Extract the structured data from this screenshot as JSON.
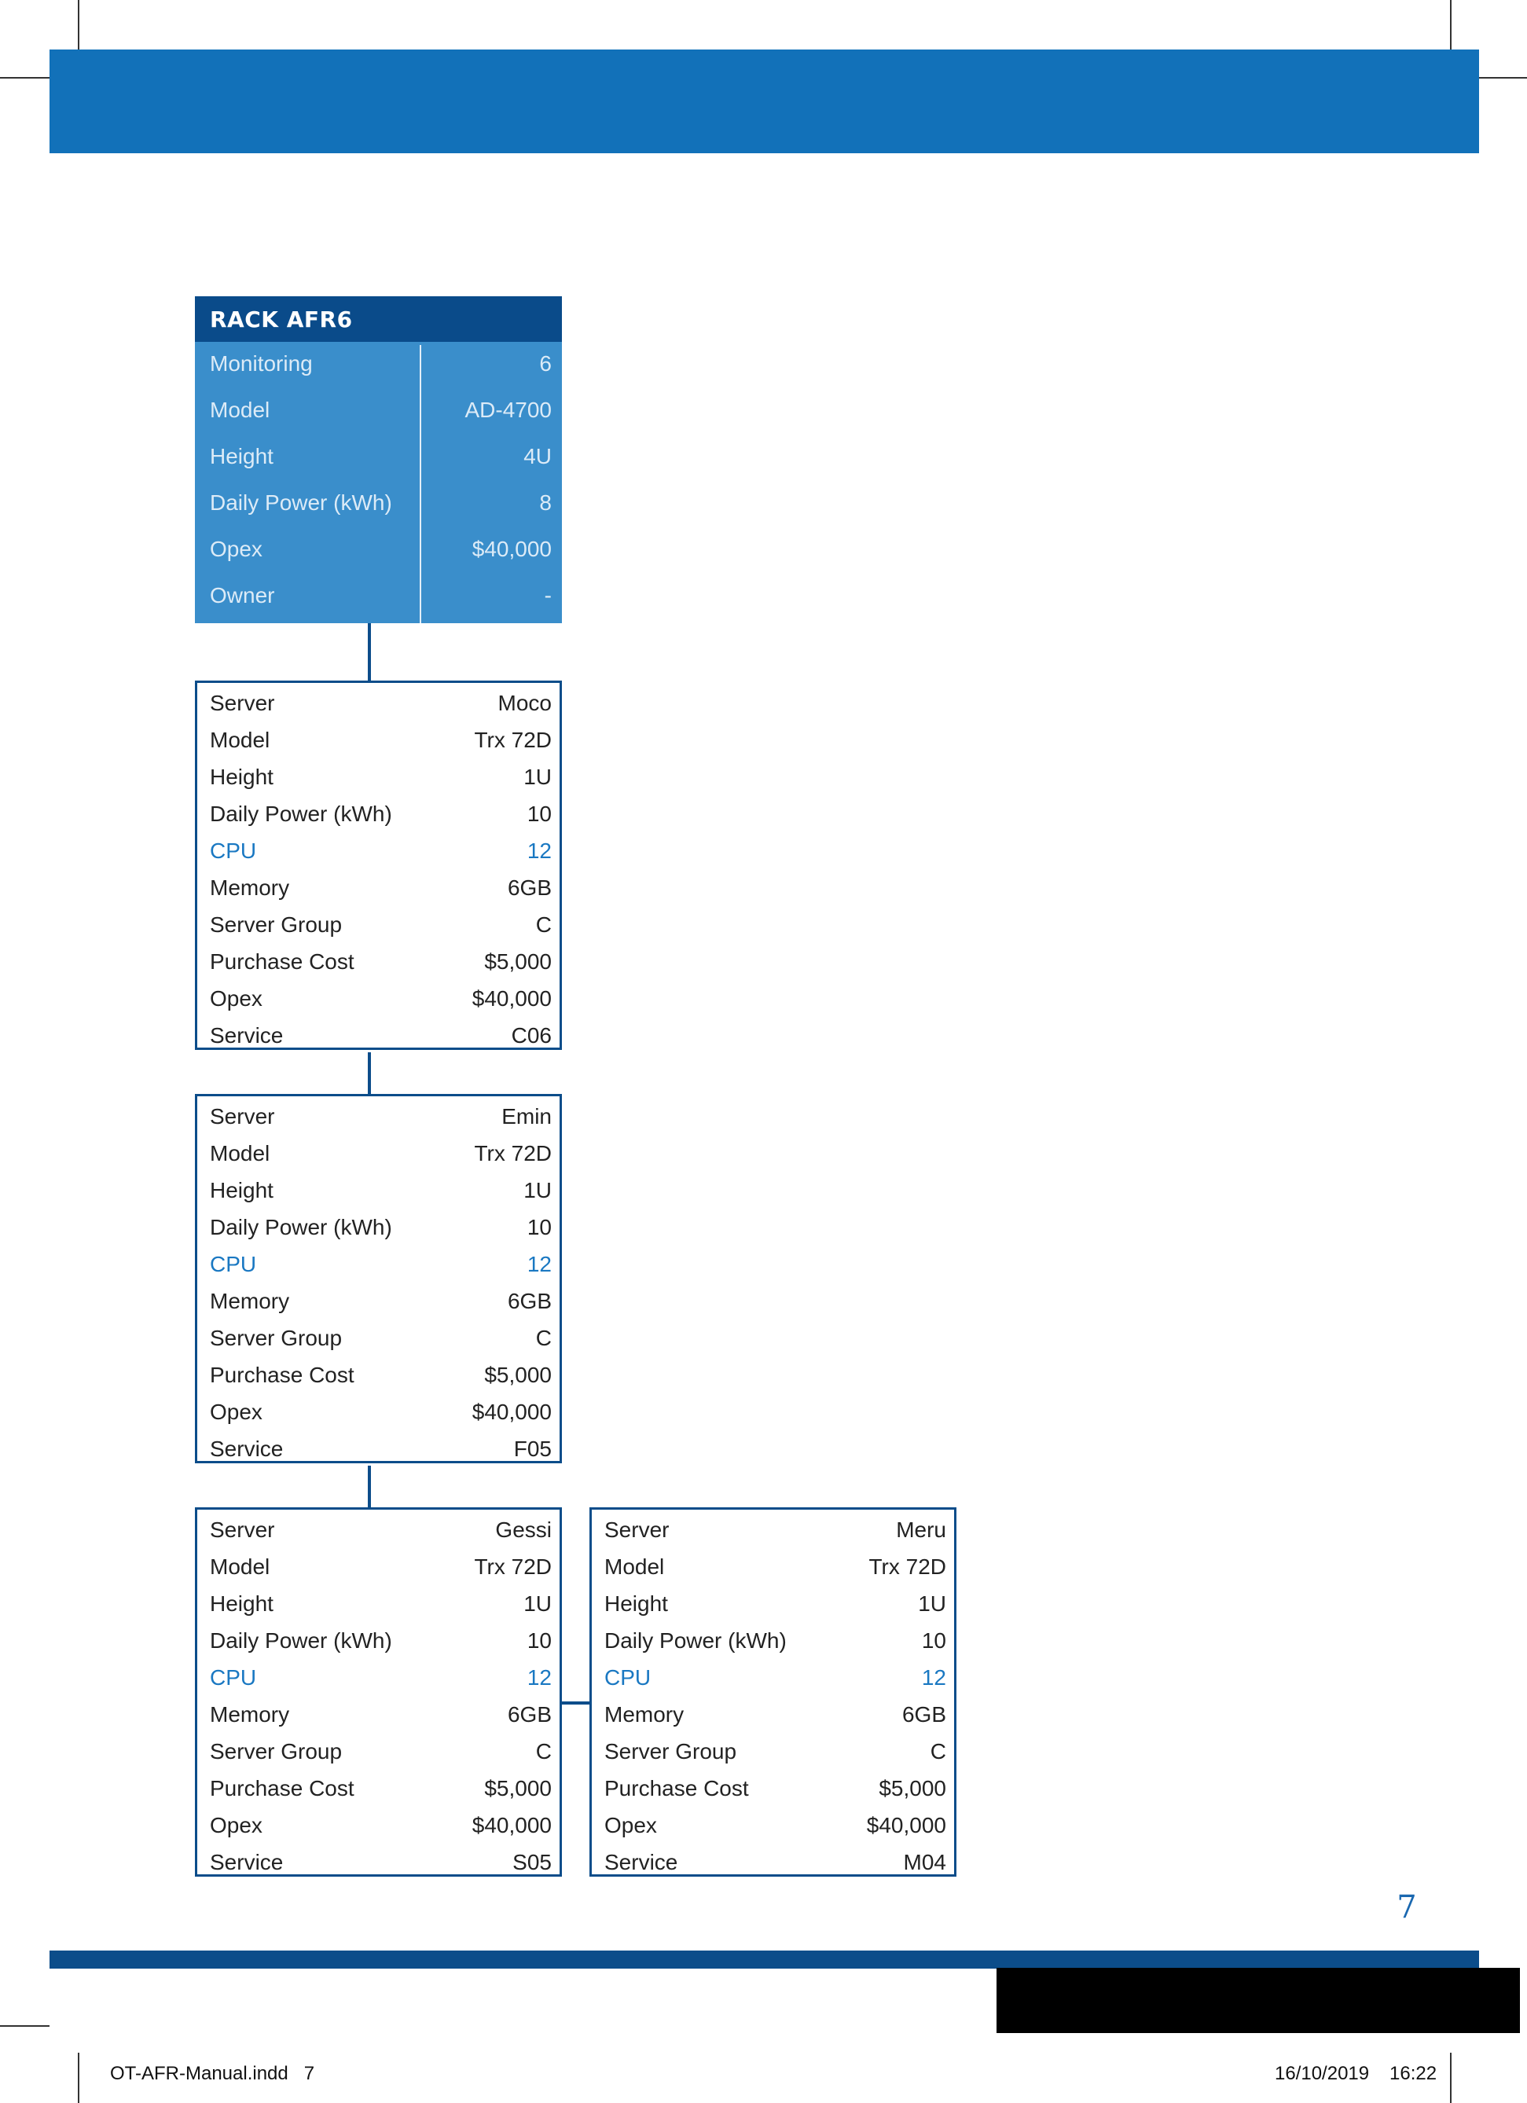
{
  "rack": {
    "title": "RACK AFR6",
    "rows": [
      {
        "label": "Monitoring",
        "value": "6"
      },
      {
        "label": "Model",
        "value": "AD-4700"
      },
      {
        "label": "Height",
        "value": "4U"
      },
      {
        "label": "Daily Power (kWh)",
        "value": "8"
      },
      {
        "label": "Opex",
        "value": "$40,000"
      },
      {
        "label": "Owner",
        "value": "-"
      }
    ]
  },
  "servers": [
    {
      "rows": [
        {
          "label": "Server",
          "value": "Moco"
        },
        {
          "label": "Model",
          "value": "Trx 72D"
        },
        {
          "label": "Height",
          "value": "1U"
        },
        {
          "label": "Daily Power (kWh)",
          "value": "10"
        },
        {
          "label": "CPU",
          "value": "12"
        },
        {
          "label": "Memory",
          "value": "6GB"
        },
        {
          "label": "Server Group",
          "value": "C"
        },
        {
          "label": "Purchase Cost",
          "value": "$5,000"
        },
        {
          "label": "Opex",
          "value": "$40,000"
        },
        {
          "label": "Service",
          "value": "C06"
        }
      ]
    },
    {
      "rows": [
        {
          "label": "Server",
          "value": "Emin"
        },
        {
          "label": "Model",
          "value": "Trx 72D"
        },
        {
          "label": "Height",
          "value": "1U"
        },
        {
          "label": "Daily Power (kWh)",
          "value": "10"
        },
        {
          "label": "CPU",
          "value": "12"
        },
        {
          "label": "Memory",
          "value": "6GB"
        },
        {
          "label": "Server Group",
          "value": "C"
        },
        {
          "label": "Purchase Cost",
          "value": "$5,000"
        },
        {
          "label": "Opex",
          "value": "$40,000"
        },
        {
          "label": "Service",
          "value": "F05"
        }
      ]
    },
    {
      "rows": [
        {
          "label": "Server",
          "value": "Gessi"
        },
        {
          "label": "Model",
          "value": "Trx 72D"
        },
        {
          "label": "Height",
          "value": "1U"
        },
        {
          "label": "Daily Power (kWh)",
          "value": "10"
        },
        {
          "label": "CPU",
          "value": "12"
        },
        {
          "label": "Memory",
          "value": "6GB"
        },
        {
          "label": "Server Group",
          "value": "C"
        },
        {
          "label": "Purchase Cost",
          "value": "$5,000"
        },
        {
          "label": "Opex",
          "value": "$40,000"
        },
        {
          "label": "Service",
          "value": "S05"
        }
      ]
    },
    {
      "rows": [
        {
          "label": "Server",
          "value": "Meru"
        },
        {
          "label": "Model",
          "value": "Trx 72D"
        },
        {
          "label": "Height",
          "value": "1U"
        },
        {
          "label": "Daily Power (kWh)",
          "value": "10"
        },
        {
          "label": "CPU",
          "value": "12"
        },
        {
          "label": "Memory",
          "value": "6GB"
        },
        {
          "label": "Server Group",
          "value": "C"
        },
        {
          "label": "Purchase Cost",
          "value": "$5,000"
        },
        {
          "label": "Opex",
          "value": "$40,000"
        },
        {
          "label": "Service",
          "value": "M04"
        }
      ]
    }
  ],
  "page_number": "7",
  "slug": {
    "file": "OT-AFR-Manual.indd   7",
    "date": "16/10/2019",
    "time": "16:22"
  },
  "colors": {
    "header_band": "#1271b9",
    "rack_header": "#0a4b8a",
    "rack_body": "#3a8ecb",
    "card_border": "#0c4d8a",
    "cpu_highlight": "#1a78c2"
  }
}
